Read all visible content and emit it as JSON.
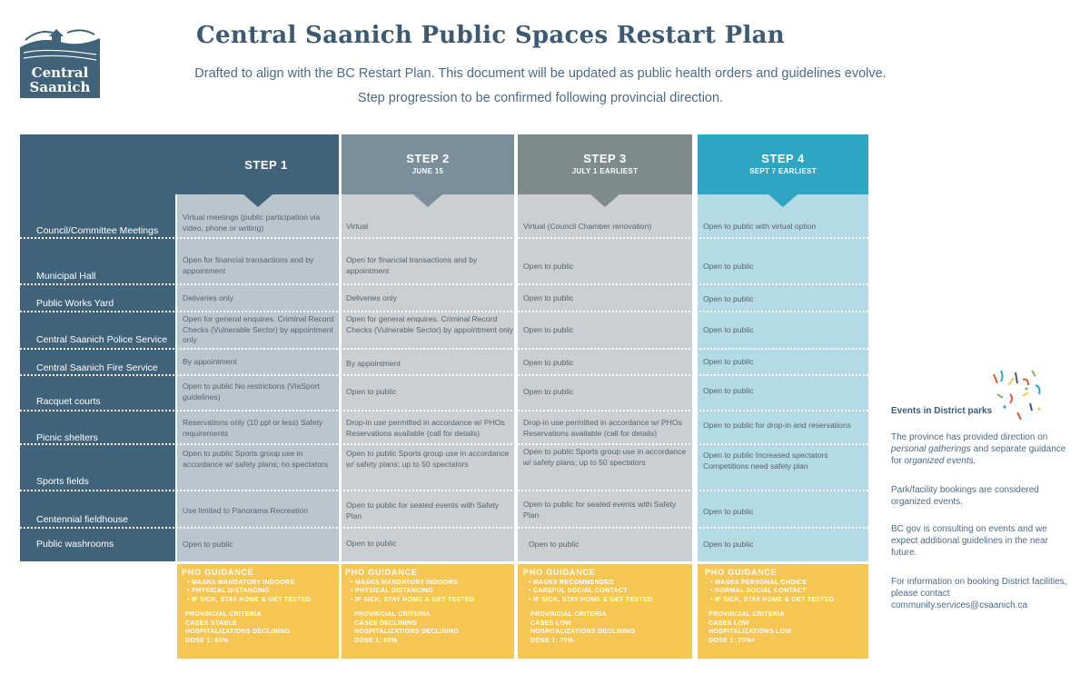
{
  "header": {
    "logo_line1": "Central",
    "logo_line2": "Saanich",
    "title": "Central Saanich Public Spaces Restart Plan",
    "subtitle_1": "Drafted to align with the BC Restart Plan. This document will be updated as public health orders and guidelines evolve.",
    "subtitle_2": "Step progression to be confirmed following provincial direction."
  },
  "colors": {
    "navy": "#41637a",
    "step2": "#7a8e9c",
    "step3": "#7d8c8a",
    "step4": "#2fa5c4",
    "pho": "#f6c655"
  },
  "steps": [
    {
      "title": "STEP 1",
      "date": ""
    },
    {
      "title": "STEP 2",
      "date": "JUNE 15"
    },
    {
      "title": "STEP 3",
      "date": "JULY 1 EARLIEST"
    },
    {
      "title": "STEP 4",
      "date": "SEPT 7 EARLIEST"
    }
  ],
  "rows": [
    {
      "label": "Council/Committee Meetings",
      "cells": [
        "Virtual meetings (public participation via video, phone or writing)",
        "Virtual",
        "Virtual (Council Chamber renovation)",
        "Open to public with virtual option"
      ]
    },
    {
      "label": "Municipal Hall",
      "cells": [
        "Open for financial transactions and by appointment",
        "Open for financial transactions and by appointment",
        "Open to public",
        "Open to public"
      ]
    },
    {
      "label": "Public Works Yard",
      "cells": [
        "Deliveries only",
        "Deliveries only",
        "Open to public",
        "Open to public"
      ]
    },
    {
      "label": "Central Saanich Police Service",
      "cells": [
        "Open for general enquires. Criminal Record Checks (Vulnerable Sector) by appointment only",
        "Open for general enquires. Criminal Record Checks (Vulnerable Sector) by appointment only",
        "Open to public",
        "Open to public"
      ]
    },
    {
      "label": "Central Saanich Fire Service",
      "cells": [
        "By appointment",
        "By appointment",
        "Open to public",
        "Open to public"
      ]
    },
    {
      "label": "Racquet courts",
      "cells": [
        "Open to public No restrictions (ViaSport guidelines)",
        "Open to public",
        "Open to public",
        "Open to public"
      ]
    },
    {
      "label": "Picnic shelters",
      "cells": [
        "Reservations only (10 ppl or less) Safety requirements",
        "Drop-in use permitted in accordance w/ PHOs Reservations available (call for details)",
        "Drop-in use permitted in accordance w/ PHOs Reservations available (call for details)",
        "Open to public for drop-in and reservations"
      ]
    },
    {
      "label": "Sports fields",
      "cells": [
        "Open to public Sports group use in accordance w/ safety plans; no spectators",
        "Open to public Sports group use in accordance w/ safety plans; up to 50 spectators",
        "Open to public Sports group use in accordance w/ safety plans; up to 50 spectators",
        "Open to public Increased spectators Competitions need safety plan"
      ]
    },
    {
      "label": "Centennial fieldhouse",
      "cells": [
        "Use limited to Panorama Recreation",
        "Open to public for seated events with Safety Plan",
        "Open to public for seated events with Safety Plan",
        "Open to public"
      ]
    },
    {
      "label": "Public washrooms",
      "cells": [
        "Open to public",
        "Open to public",
        "Open to public",
        "Open to public"
      ]
    }
  ],
  "pho": [
    {
      "heading": "PHO GUIDANCE",
      "items": [
        "MASKS MANDATORY INDOORS",
        "PHYSICAL DISTANCING",
        "IF SICK, STAY HOME & GET TESTED"
      ],
      "criteria_heading": "PROVINCIAL CRITERIA",
      "criteria": [
        "CASES STABLE",
        "HOSPITALIZATIONS DECLINING",
        "DOSE 1: 60%"
      ]
    },
    {
      "heading": "PHO GUIDANCE",
      "items": [
        "MASKS MANDATORY INDOORS",
        "PHYSICAL DISTANCING",
        "IF SICK, STAY HOME & GET TESTED"
      ],
      "criteria_heading": "PROVINCIAL CRITERIA",
      "criteria": [
        "CASES DECLINING",
        "HOSPITALIZATIONS DECLINING",
        "DOSE 1: 65%"
      ]
    },
    {
      "heading": "PHO GUIDANCE",
      "items": [
        "MASKS RECOMMENDED",
        "CAREFUL SOCIAL CONTACT",
        "IF SICK, STAY HOME & GET TESTED"
      ],
      "criteria_heading": "PROVINCIAL CRITERIA",
      "criteria": [
        "CASES LOW",
        "HOSPITALIZATIONS DECLINING",
        "DOSE 1: 70%"
      ]
    },
    {
      "heading": "PHO GUIDANCE",
      "items": [
        "MASKS PERSONAL CHOICE",
        "NORMAL SOCIAL CONTACT",
        "IF SICK, STAY HOME & GET TESTED"
      ],
      "criteria_heading": "PROVINCIAL CRITERIA",
      "criteria": [
        "CASES LOW",
        "HOSPITALIZATIONS LOW",
        "DOSE 1: 70%+"
      ]
    }
  ],
  "sidebar": {
    "title": "Events in District parks",
    "p1_a": "The province has provided direction on ",
    "p1_b": "personal gatherings",
    "p1_c": " and separate guidance for ",
    "p1_d": "organized events.",
    "p2": "Park/facility bookings are considered organized events.",
    "p3": "BC gov is consulting on events and we expect additional guidelines in the near future.",
    "p4": "For information on booking District facilities, please contact community.services@csaanich.ca"
  }
}
